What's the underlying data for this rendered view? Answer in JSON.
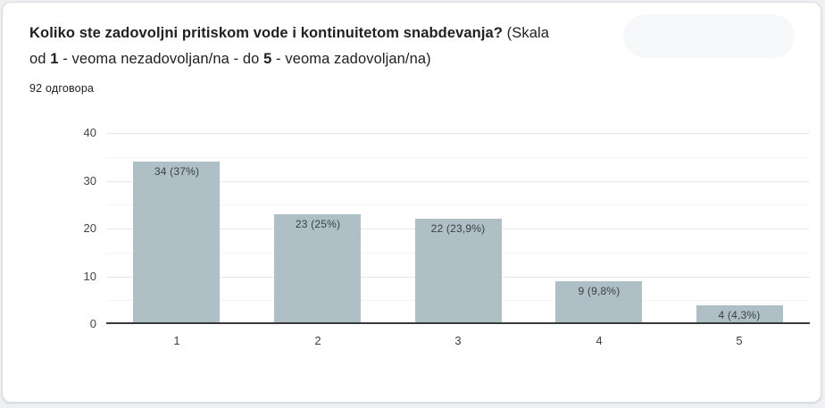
{
  "header": {
    "title_lines": [
      [
        {
          "text": "Koliko ste zadovoljni pritiskom vode i kontinuitetom snabdevanja?",
          "bold": true
        },
        {
          "text": " (Skala",
          "bold": false
        }
      ],
      [
        {
          "text": "od ",
          "bold": false
        },
        {
          "text": "1",
          "bold": true
        },
        {
          "text": " - veoma nezadovoljan/na - do ",
          "bold": false
        },
        {
          "text": "5",
          "bold": true
        },
        {
          "text": " - veoma zadovoljan/na)",
          "bold": false
        }
      ]
    ],
    "responses": "92 одговора"
  },
  "chart_data": {
    "type": "bar",
    "title": "Koliko ste zadovoljni pritiskom vode i kontinuitetom snabdevanja? (Skala od 1 - veoma nezadovoljan/na - do 5 - veoma zadovoljan/na)",
    "categories": [
      "1",
      "2",
      "3",
      "4",
      "5"
    ],
    "values": [
      34,
      23,
      22,
      9,
      4
    ],
    "bar_labels": [
      "34 (37%)",
      "23 (25%)",
      "22 (23,9%)",
      "9 (9,8%)",
      "4 (4,3%)"
    ],
    "xlabel": "",
    "ylabel": "",
    "ylim": [
      0,
      40
    ],
    "yticks": [
      0,
      10,
      20,
      30,
      40
    ],
    "minor_grid_step": 5,
    "grid": "horizontal",
    "legend_position": "none",
    "bar_color": "#aec0c5",
    "major_grid_color": "#e7e7e7",
    "minor_grid_color": "#f4f4f4",
    "axis_line_color": "#37393a",
    "label_color": "#3c4043"
  }
}
